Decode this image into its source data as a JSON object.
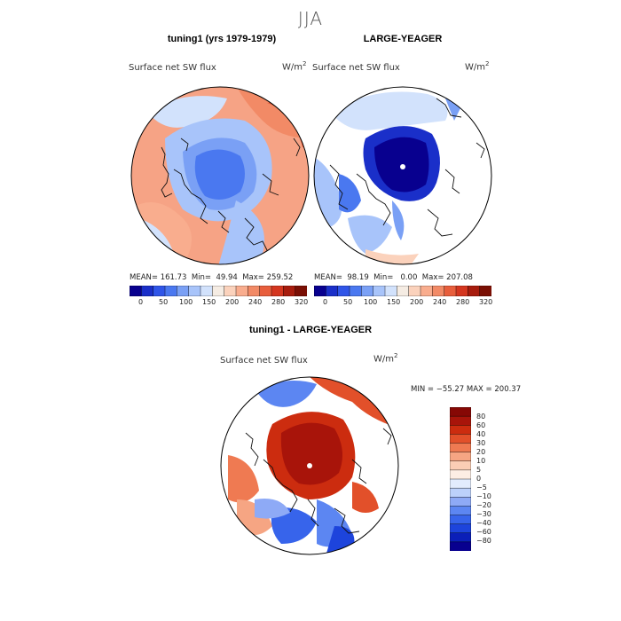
{
  "title": "JJA",
  "colors": {
    "abs_scale": [
      "#08008f",
      "#1a2fc9",
      "#2f55e8",
      "#4a78f0",
      "#7aa0f5",
      "#a8c4fa",
      "#d2e2fc",
      "#f5ece3",
      "#fbd2bc",
      "#f9ad8e",
      "#f28a66",
      "#e85e3c",
      "#d4361f",
      "#a71c0d",
      "#7a0f04"
    ],
    "diff_scale": [
      "#08008f",
      "#0b1fb8",
      "#1d44dc",
      "#3764eb",
      "#5c86f2",
      "#8eaaf6",
      "#bcd1fb",
      "#e2ecfd",
      "#fdeee4",
      "#fbcdb5",
      "#f6a583",
      "#ef7a52",
      "#e2502a",
      "#cc2c0f",
      "#a8140a",
      "#860805"
    ]
  },
  "panels": [
    {
      "title": "tuning1 (yrs 1979-1979)",
      "variable": "Surface net SW flux",
      "units": "W/m",
      "units_exp": "2",
      "stats": "MEAN= 161.73  Min=  49.94  Max= 259.52",
      "colorbar_ticks": [
        "0",
        "50",
        "100",
        "150",
        "200",
        "240",
        "280",
        "320"
      ]
    },
    {
      "title": "LARGE-YEAGER",
      "variable": "Surface net SW flux",
      "units": "W/m",
      "units_exp": "2",
      "stats": "MEAN=  98.19  Min=   0.00  Max= 207.08",
      "colorbar_ticks": [
        "0",
        "50",
        "100",
        "150",
        "200",
        "240",
        "280",
        "320"
      ]
    },
    {
      "title": "tuning1 - LARGE-YEAGER",
      "variable": "Surface net SW flux",
      "units": "W/m",
      "units_exp": "2",
      "stats": "MIN = −55.27 MAX = 200.37",
      "colorbar_ticks": [
        "80",
        "60",
        "40",
        "30",
        "20",
        "10",
        "5",
        "0",
        "−5",
        "−10",
        "−20",
        "−30",
        "−40",
        "−60",
        "−80"
      ]
    }
  ]
}
